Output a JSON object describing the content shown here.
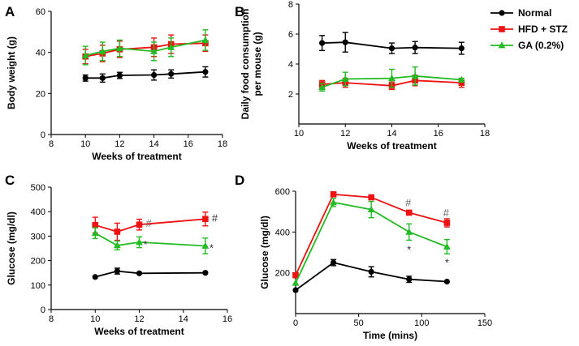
{
  "legend": {
    "entries": [
      {
        "name": "Normal",
        "color": "#000000",
        "marker": "circle"
      },
      {
        "name": "HFD + STZ",
        "color": "#ee1111",
        "marker": "square"
      },
      {
        "name": "GA (0.2%)",
        "color": "#22bb22",
        "marker": "triangle"
      }
    ]
  },
  "chart_data": [
    {
      "panel": "A",
      "type": "line",
      "xlabel": "Weeks of treatment",
      "ylabel": "Body weight (g)",
      "xlim": [
        8,
        18
      ],
      "ylim": [
        0,
        60
      ],
      "xticks": [
        8,
        10,
        12,
        14,
        16,
        18
      ],
      "yticks": [
        0,
        20,
        40,
        60
      ],
      "series": [
        {
          "name": "Normal",
          "color": "#000000",
          "marker": "circle",
          "x": [
            10,
            11,
            12,
            14,
            15,
            17
          ],
          "y": [
            27.5,
            27.5,
            28.8,
            29,
            29.5,
            30.5
          ],
          "err": [
            1.5,
            2,
            1.5,
            2.5,
            2,
            2.5
          ]
        },
        {
          "name": "HFD + STZ",
          "color": "#ee1111",
          "marker": "square",
          "x": [
            10,
            11,
            12,
            14,
            15,
            17
          ],
          "y": [
            38,
            39.5,
            41.5,
            42.5,
            44,
            44.5
          ],
          "err": [
            3.5,
            4,
            4,
            4.5,
            4.5,
            4
          ]
        },
        {
          "name": "GA (0.2%)",
          "color": "#22bb22",
          "marker": "triangle",
          "x": [
            10,
            11,
            12,
            14,
            15,
            17
          ],
          "y": [
            38.5,
            40.5,
            42,
            40.5,
            42.5,
            46
          ],
          "err": [
            4.5,
            4.5,
            4,
            4.5,
            4.5,
            5
          ]
        }
      ],
      "annotations": []
    },
    {
      "panel": "B",
      "type": "line",
      "xlabel": "Weeks of treatment",
      "ylabel": "Daily food consumption per mouse (g)",
      "xlim": [
        10,
        18
      ],
      "ylim": [
        0,
        8
      ],
      "xticks": [
        10,
        12,
        14,
        16,
        18
      ],
      "yticks": [
        2,
        4,
        6,
        8
      ],
      "series": [
        {
          "name": "Normal",
          "color": "#000000",
          "marker": "circle",
          "x": [
            11,
            12,
            14,
            15,
            17
          ],
          "y": [
            5.4,
            5.45,
            5.05,
            5.1,
            5.05
          ],
          "err": [
            0.5,
            0.65,
            0.35,
            0.4,
            0.4
          ]
        },
        {
          "name": "HFD + STZ",
          "color": "#ee1111",
          "marker": "square",
          "x": [
            11,
            12,
            14,
            15,
            17
          ],
          "y": [
            2.65,
            2.75,
            2.55,
            2.9,
            2.75
          ],
          "err": [
            0.25,
            0.3,
            0.25,
            0.35,
            0.3
          ]
        },
        {
          "name": "GA (0.2%)",
          "color": "#22bb22",
          "marker": "triangle",
          "x": [
            11,
            12,
            14,
            15,
            17
          ],
          "y": [
            2.45,
            3.0,
            3.05,
            3.2,
            2.95
          ],
          "err": [
            0.25,
            0.45,
            0.6,
            0.6,
            0.1
          ]
        }
      ],
      "annotations": []
    },
    {
      "panel": "C",
      "type": "line",
      "xlabel": "Weeks of treatment",
      "ylabel": "Glucose (mg/dl)",
      "xlim": [
        8,
        16
      ],
      "ylim": [
        0,
        500
      ],
      "xticks": [
        8,
        10,
        12,
        14,
        16
      ],
      "yticks": [
        0,
        100,
        200,
        300,
        400,
        500
      ],
      "series": [
        {
          "name": "Normal",
          "color": "#000000",
          "marker": "circle",
          "x": [
            10,
            11,
            12,
            15
          ],
          "y": [
            133,
            157,
            148,
            150
          ],
          "err": [
            0,
            12,
            0,
            0
          ]
        },
        {
          "name": "HFD + STZ",
          "color": "#ee1111",
          "marker": "square",
          "x": [
            10,
            11,
            12,
            15
          ],
          "y": [
            345,
            318,
            347,
            370
          ],
          "err": [
            32,
            35,
            22,
            28
          ]
        },
        {
          "name": "GA (0.2%)",
          "color": "#22bb22",
          "marker": "triangle",
          "x": [
            10,
            11,
            12,
            15
          ],
          "y": [
            312,
            262,
            275,
            260
          ],
          "err": [
            22,
            18,
            22,
            32
          ]
        }
      ],
      "annotations": [
        {
          "text": "#",
          "x": 12,
          "y": 347,
          "color": "#666666"
        },
        {
          "text": "#",
          "x": 15,
          "y": 370,
          "color": "#333333"
        },
        {
          "text": "*",
          "x": 12,
          "y": 275,
          "color": "#333333"
        },
        {
          "text": "*",
          "x": 15,
          "y": 260,
          "color": "#333333"
        }
      ]
    },
    {
      "panel": "D",
      "type": "line",
      "xlabel": "Time (mins)",
      "ylabel": "Glucose (mg/dl)",
      "xlim": [
        0,
        150
      ],
      "ylim": [
        0,
        600
      ],
      "xticks": [
        0,
        50,
        100,
        150
      ],
      "yticks": [
        200,
        400,
        600
      ],
      "series": [
        {
          "name": "Normal",
          "color": "#000000",
          "marker": "circle",
          "x": [
            0,
            30,
            60,
            90,
            120
          ],
          "y": [
            115,
            250,
            205,
            168,
            157
          ],
          "err": [
            0,
            15,
            25,
            15,
            0
          ]
        },
        {
          "name": "HFD + STZ",
          "color": "#ee1111",
          "marker": "square",
          "x": [
            0,
            30,
            60,
            90,
            120
          ],
          "y": [
            188,
            585,
            570,
            495,
            445
          ],
          "err": [
            0,
            8,
            5,
            8,
            20
          ]
        },
        {
          "name": "GA (0.2%)",
          "color": "#22bb22",
          "marker": "triangle",
          "x": [
            0,
            30,
            60,
            90,
            120
          ],
          "y": [
            150,
            545,
            510,
            400,
            328
          ],
          "err": [
            0,
            20,
            40,
            40,
            35
          ]
        }
      ],
      "annotations": [
        {
          "text": "#",
          "x": 90,
          "y": 495,
          "color": "#666666"
        },
        {
          "text": "#",
          "x": 120,
          "y": 445,
          "color": "#666666"
        },
        {
          "text": "*",
          "x": 90,
          "y": 400,
          "color": "#333333"
        },
        {
          "text": "*",
          "x": 120,
          "y": 328,
          "color": "#333333"
        }
      ]
    }
  ]
}
